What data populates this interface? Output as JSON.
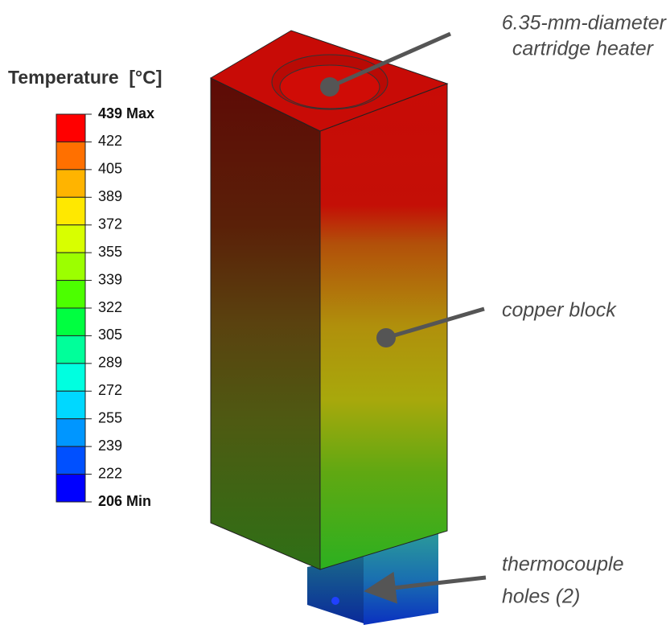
{
  "legend": {
    "title": "Temperature  [°C]",
    "labels": [
      "439 Max",
      "422",
      "405",
      "389",
      "372",
      "355",
      "339",
      "322",
      "305",
      "289",
      "272",
      "255",
      "239",
      "222",
      "206 Min"
    ],
    "colors": [
      "#ff0000",
      "#ff7000",
      "#ffb400",
      "#ffe800",
      "#d8ff00",
      "#9cff00",
      "#4cff00",
      "#00ff40",
      "#00ff9a",
      "#00ffe0",
      "#00d8ff",
      "#0096ff",
      "#0050ff",
      "#0000ff"
    ]
  },
  "annotations": [
    {
      "lines": [
        "6.35-mm-diameter",
        "cartridge heater"
      ]
    },
    {
      "lines": [
        "copper block"
      ]
    },
    {
      "lines": [
        "thermocouple",
        "holes (2)"
      ]
    }
  ]
}
